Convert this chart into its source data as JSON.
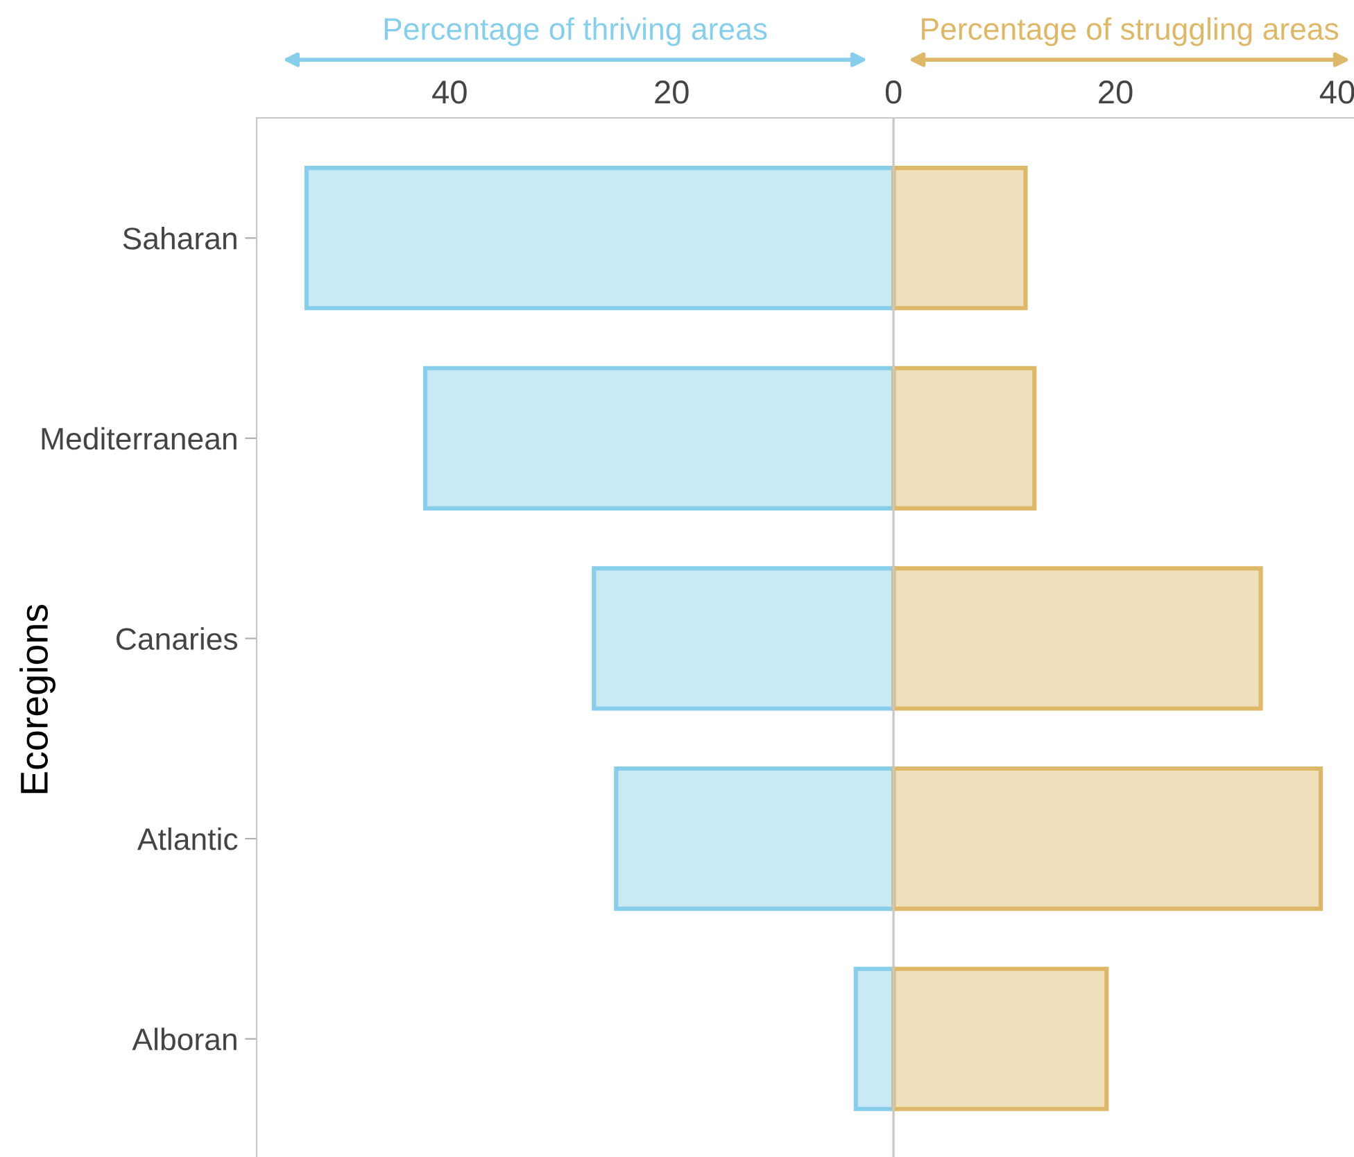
{
  "chart_data": {
    "type": "bar",
    "orientation": "horizontal",
    "ylabel": "Ecoregions",
    "categories": [
      "Saharan",
      "Mediterranean",
      "Canaries",
      "Atlantic",
      "Alboran"
    ],
    "series": [
      {
        "name": "Percentage of thriving areas",
        "color": "#87ceeb",
        "values": [
          -52.9,
          -42.2,
          -27,
          -25,
          -3.4
        ]
      },
      {
        "name": "Percentage of struggling areas",
        "color": "#ddb868",
        "values": [
          11.9,
          12.7,
          33.1,
          38.5,
          19.2
        ]
      }
    ],
    "xlim": [
      -57.4,
      41.5
    ],
    "xticks": [
      {
        "value": -40,
        "label": "40"
      },
      {
        "value": -20,
        "label": "20"
      },
      0,
      20,
      40
    ],
    "ref_lines": [
      {
        "axis": "x",
        "value": 0,
        "color": "#c8c8c8"
      }
    ],
    "grid": false,
    "legend": false
  }
}
